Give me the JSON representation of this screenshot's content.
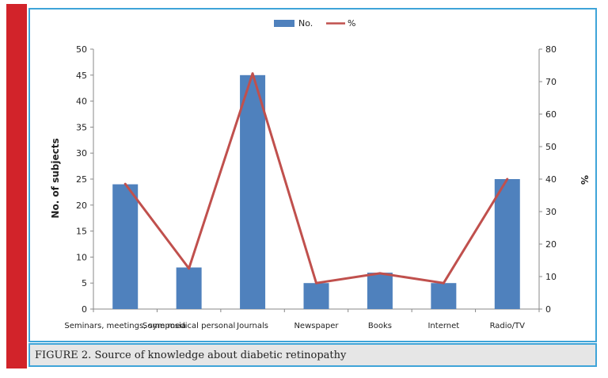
{
  "caption": "FIGURE 2. Source of knowledge about diabetic retinopathy",
  "colors": {
    "accent_bar": "#d2232a",
    "border": "#3fa4d8",
    "bars": "#4f81bd",
    "line": "#c0504d"
  },
  "chart_data": {
    "type": "bar",
    "categories": [
      "Seminars, meetings, symposia",
      "Some medical personal",
      "Journals",
      "Newspaper",
      "Books",
      "Internet",
      "Radio/TV"
    ],
    "series": [
      {
        "name": "No.",
        "type": "bar",
        "axis": "left",
        "values": [
          24,
          8,
          45,
          5,
          7,
          5,
          25
        ]
      },
      {
        "name": "%",
        "type": "line",
        "axis": "right",
        "values": [
          38.5,
          12.5,
          72.5,
          8,
          11,
          8,
          40
        ]
      }
    ],
    "ylabel": "No. of subjects",
    "y2label": "%",
    "ylim": [
      0,
      50
    ],
    "y2lim": [
      0,
      80
    ],
    "yticks": [
      "0",
      "5",
      "10",
      "15",
      "20",
      "25",
      "30",
      "35",
      "40",
      "45",
      "50"
    ],
    "y2ticks": [
      "0",
      "10",
      "20",
      "30",
      "40",
      "50",
      "60",
      "70",
      "80"
    ],
    "legend": [
      "No.",
      "%"
    ],
    "legend_position": "top"
  }
}
